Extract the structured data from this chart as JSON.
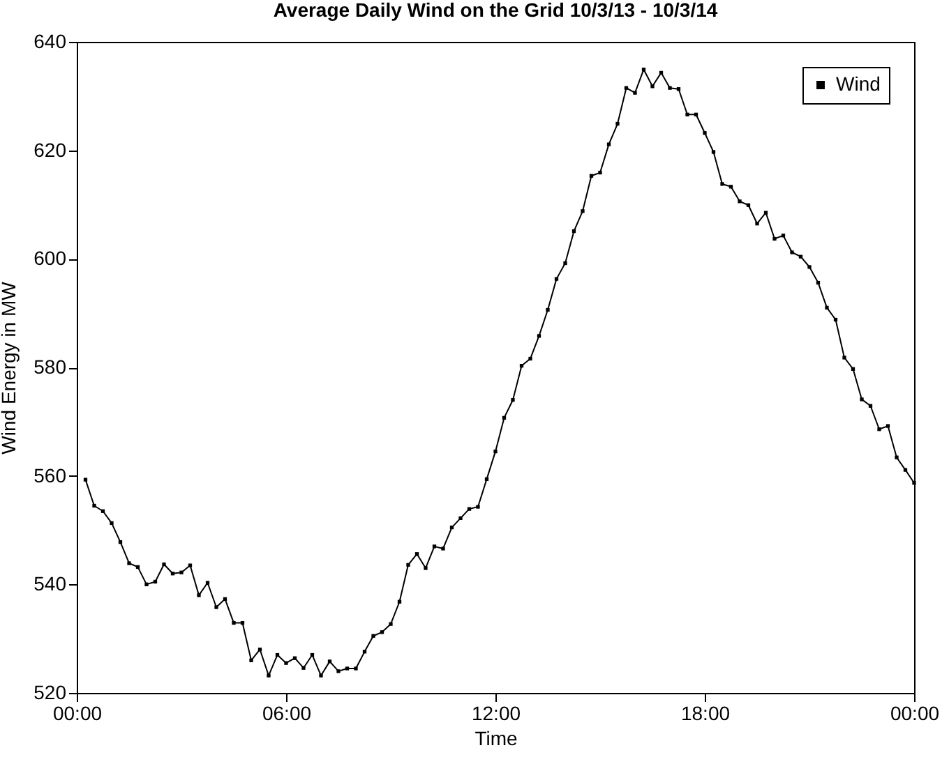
{
  "chart_data": {
    "type": "line",
    "title": "Average Daily Wind on the Grid 10/3/13 - 10/3/14",
    "xlabel": "Time",
    "ylabel": "Wind Energy in MW",
    "x": [
      0.25,
      0.5,
      0.75,
      1,
      1.25,
      1.5,
      1.75,
      2,
      2.25,
      2.5,
      2.75,
      3,
      3.25,
      3.5,
      3.75,
      4,
      4.25,
      4.5,
      4.75,
      5,
      5.25,
      5.5,
      5.75,
      6,
      6.25,
      6.5,
      6.75,
      7,
      7.25,
      7.5,
      7.75,
      8,
      8.25,
      8.5,
      8.75,
      9,
      9.25,
      9.5,
      9.75,
      10,
      10.25,
      10.5,
      10.75,
      11,
      11.25,
      11.5,
      11.75,
      12,
      12.25,
      12.5,
      12.75,
      13,
      13.25,
      13.5,
      13.75,
      14,
      14.25,
      14.5,
      14.75,
      15,
      15.25,
      15.5,
      15.75,
      16,
      16.25,
      16.5,
      16.75,
      17,
      17.25,
      17.5,
      17.75,
      18,
      18.25,
      18.5,
      18.75,
      19,
      19.25,
      19.5,
      19.75,
      20,
      20.25,
      20.5,
      20.75,
      21,
      21.25,
      21.5,
      21.75,
      22,
      22.25,
      22.5,
      22.75,
      23,
      23.25,
      23.5,
      23.75,
      24
    ],
    "series": [
      {
        "name": "Wind",
        "color": "#000000",
        "values": [
          559.3,
          554.5,
          553.5,
          551.3,
          547.8,
          543.9,
          543.2,
          540,
          540.5,
          543.7,
          542,
          542.2,
          543.5,
          538,
          540.3,
          535.8,
          537.3,
          532.9,
          532.9,
          526,
          528,
          523.2,
          527,
          525.5,
          526.4,
          524.6,
          527,
          523.2,
          525.8,
          524,
          524.5,
          524.5,
          527.6,
          530.5,
          531.2,
          532.7,
          536.8,
          543.6,
          545.6,
          543,
          547,
          546.6,
          550.5,
          552.2,
          553.9,
          554.3,
          559.4,
          564.5,
          570.7,
          574,
          580.3,
          581.6,
          585.8,
          590.6,
          596.3,
          599.2,
          605.1,
          608.8,
          615.3,
          615.9,
          621.1,
          624.9,
          631.5,
          630.6,
          634.9,
          631.8,
          634.3,
          631.5,
          631.3,
          626.6,
          626.6,
          623.2,
          619.7,
          613.8,
          613.3,
          610.6,
          609.9,
          606.5,
          608.5,
          603.7,
          604.3,
          601.2,
          600.4,
          598.5,
          595.6,
          591,
          588.8,
          581.8,
          579.7,
          574.1,
          572.9,
          568.6,
          569.2,
          563.4,
          561.1,
          558.7
        ]
      }
    ],
    "xlim": [
      0,
      24
    ],
    "xticks": [
      {
        "value": 0,
        "label": "00:00"
      },
      {
        "value": 6,
        "label": "06:00"
      },
      {
        "value": 12,
        "label": "12:00"
      },
      {
        "value": 18,
        "label": "18:00"
      },
      {
        "value": 24,
        "label": "00:00"
      }
    ],
    "ylim": [
      520,
      640
    ],
    "yticks": [
      520,
      540,
      560,
      580,
      600,
      620,
      640
    ],
    "grid": false,
    "legend": "top right",
    "marker": "square",
    "line_style": "solid"
  }
}
